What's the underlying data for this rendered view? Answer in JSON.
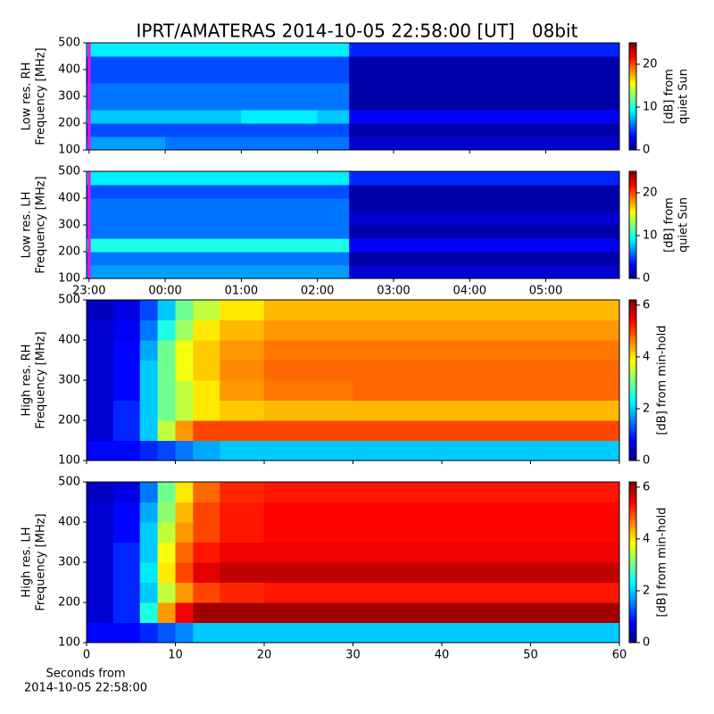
{
  "chart_data": [
    {
      "type": "heatmap",
      "title": "IPRT/AMATERAS 2014-10-05 22:58:00 [UT]   08bit",
      "ylabel": [
        "Low res. RH",
        "Frequency [MHz]"
      ],
      "colorbar_label": [
        "[dB] from",
        "quiet Sun"
      ],
      "xlim": [
        22.967,
        29.967
      ],
      "ylim": [
        100,
        500
      ],
      "yticks": [
        100,
        200,
        300,
        400,
        500
      ],
      "zlim": [
        0,
        25
      ],
      "zticks": [
        0,
        10,
        20
      ],
      "colormap": "jet",
      "x_edges": [
        22.967,
        24,
        25,
        26,
        26.417,
        28,
        29.967
      ],
      "y_edges": [
        100,
        150,
        200,
        250,
        300,
        350,
        400,
        450,
        500
      ],
      "z": [
        [
          7,
          6,
          6,
          6,
          2,
          2
        ],
        [
          5,
          5,
          5,
          5,
          1,
          1
        ],
        [
          8,
          8,
          9,
          8,
          3,
          3
        ],
        [
          6,
          6,
          6,
          6,
          1,
          1
        ],
        [
          6,
          6,
          6,
          6,
          1,
          1
        ],
        [
          5,
          5,
          5,
          5,
          1,
          1
        ],
        [
          5,
          5,
          5,
          5,
          1,
          1
        ],
        [
          9,
          9,
          9,
          9,
          4,
          4
        ]
      ]
    },
    {
      "type": "heatmap",
      "ylabel": [
        "Low res. LH",
        "Frequency [MHz]"
      ],
      "colorbar_label": [
        "[dB] from",
        "quiet Sun"
      ],
      "xlim": [
        22.967,
        29.967
      ],
      "ylim": [
        100,
        500
      ],
      "xticks": [
        {
          "value": 23,
          "label": "23:00"
        },
        {
          "value": 24,
          "label": "00:00"
        },
        {
          "value": 25,
          "label": "01:00"
        },
        {
          "value": 26,
          "label": "02:00"
        },
        {
          "value": 27,
          "label": "03:00"
        },
        {
          "value": 28,
          "label": "04:00"
        },
        {
          "value": 29,
          "label": "05:00"
        }
      ],
      "yticks": [
        100,
        200,
        300,
        400,
        500
      ],
      "zlim": [
        0,
        25
      ],
      "zticks": [
        0,
        10,
        20
      ],
      "colormap": "jet",
      "x_edges": [
        22.967,
        24,
        25,
        26,
        26.417,
        28,
        29.967
      ],
      "y_edges": [
        100,
        150,
        200,
        250,
        300,
        350,
        400,
        450,
        500
      ],
      "z": [
        [
          7,
          7,
          7,
          7,
          2,
          2
        ],
        [
          6,
          6,
          6,
          6,
          1,
          1
        ],
        [
          10,
          10,
          10,
          10,
          3,
          3
        ],
        [
          6,
          6,
          6,
          6,
          1,
          1
        ],
        [
          6,
          6,
          6,
          6,
          2,
          2
        ],
        [
          6,
          6,
          6,
          6,
          1,
          1
        ],
        [
          5,
          5,
          5,
          5,
          1,
          1
        ],
        [
          9,
          9,
          9,
          9,
          4,
          4
        ]
      ]
    },
    {
      "type": "heatmap",
      "ylabel": [
        "High res. RH",
        "Frequency [MHz]"
      ],
      "colorbar_label": [
        "[dB] from min-hold"
      ],
      "xlim": [
        0,
        60
      ],
      "ylim": [
        100,
        500
      ],
      "yticks": [
        100,
        200,
        300,
        400,
        500
      ],
      "zlim": [
        0,
        6.2
      ],
      "zticks": [
        0,
        2,
        4,
        6
      ],
      "colormap": "jet",
      "x_edges": [
        0,
        3,
        6,
        8,
        10,
        12,
        15,
        20,
        30,
        40,
        50,
        60
      ],
      "y_edges": [
        100,
        150,
        200,
        250,
        300,
        350,
        400,
        450,
        500
      ],
      "z": [
        [
          0.8,
          0.8,
          1,
          1.2,
          1.5,
          1.8,
          2,
          2,
          2,
          2,
          2
        ],
        [
          0.5,
          1,
          2,
          3.5,
          4.5,
          5,
          5,
          5,
          5,
          5,
          5
        ],
        [
          0.5,
          1,
          2,
          3,
          3.5,
          4,
          4.2,
          4.3,
          4.3,
          4.3,
          4.3
        ],
        [
          0.5,
          0.8,
          2,
          3,
          3.5,
          4,
          4.5,
          4.7,
          4.8,
          4.8,
          4.8
        ],
        [
          0.5,
          0.8,
          2,
          3,
          3.8,
          4.2,
          4.6,
          4.8,
          4.8,
          4.8,
          4.8
        ],
        [
          0.5,
          0.8,
          1.8,
          3,
          3.8,
          4.2,
          4.5,
          4.7,
          4.7,
          4.7,
          4.7
        ],
        [
          0.5,
          0.7,
          1.5,
          2.5,
          3.3,
          4,
          4.3,
          4.5,
          4.5,
          4.5,
          4.5
        ],
        [
          0.4,
          0.6,
          1.2,
          2,
          3,
          3.5,
          4,
          4.3,
          4.3,
          4.3,
          4.3
        ]
      ]
    },
    {
      "type": "heatmap",
      "ylabel": [
        "High res. LH",
        "Frequency [MHz]"
      ],
      "colorbar_label": [
        "[dB] from min-hold"
      ],
      "xlabel": [
        "Seconds from",
        "2014-10-05 22:58:00"
      ],
      "xlim": [
        0,
        60
      ],
      "ylim": [
        100,
        500
      ],
      "xticks": [
        0,
        10,
        20,
        30,
        40,
        50,
        60
      ],
      "yticks": [
        100,
        200,
        300,
        400,
        500
      ],
      "zlim": [
        0,
        6.2
      ],
      "zticks": [
        0,
        2,
        4,
        6
      ],
      "colormap": "jet",
      "x_edges": [
        0,
        3,
        6,
        8,
        10,
        12,
        15,
        20,
        30,
        40,
        50,
        60
      ],
      "y_edges": [
        100,
        150,
        200,
        250,
        300,
        350,
        400,
        450,
        500
      ],
      "z": [
        [
          0.8,
          0.8,
          1,
          1.3,
          1.6,
          2,
          2,
          2,
          2,
          2,
          2
        ],
        [
          0.5,
          1,
          2.5,
          4.5,
          5.5,
          6,
          6,
          6,
          6,
          6,
          6
        ],
        [
          0.5,
          1,
          2,
          3.5,
          4.5,
          5,
          5.2,
          5.3,
          5.3,
          5.3,
          5.3
        ],
        [
          0.5,
          1,
          2.2,
          4,
          5,
          5.6,
          5.8,
          5.8,
          5.8,
          5.8,
          5.8
        ],
        [
          0.5,
          1,
          2,
          3.8,
          4.8,
          5.3,
          5.5,
          5.5,
          5.5,
          5.5,
          5.5
        ],
        [
          0.5,
          0.8,
          2,
          3.5,
          4.5,
          5,
          5.3,
          5.4,
          5.4,
          5.4,
          5.4
        ],
        [
          0.5,
          0.8,
          1.8,
          3.2,
          4.3,
          5,
          5.3,
          5.4,
          5.4,
          5.4,
          5.4
        ],
        [
          0.4,
          0.6,
          1.5,
          3,
          4,
          4.8,
          5.2,
          5.3,
          5.3,
          5.3,
          5.3
        ]
      ]
    }
  ]
}
